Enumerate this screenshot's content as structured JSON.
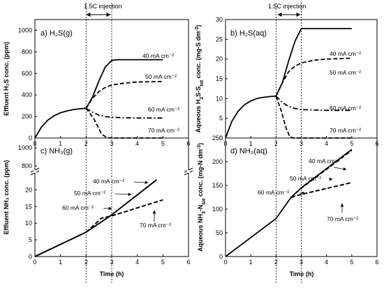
{
  "figure": {
    "injection_label": "1.5C injection",
    "injection_range": [
      2,
      3
    ],
    "xlabel": "Time (h)"
  },
  "chart_data": [
    {
      "id": "a",
      "type": "line",
      "title": "a) H₂S(g)",
      "ylabel": "Effluent H₂S conc. (ppm)",
      "xlim": [
        0,
        6
      ],
      "ylim": [
        0,
        1100
      ],
      "xticks": [
        "0",
        "1",
        "2",
        "3",
        "4",
        "5",
        "6"
      ],
      "yticks": [
        "0",
        "200",
        "400",
        "600",
        "800",
        "1000"
      ],
      "series": [
        {
          "name": "40 mA cm⁻²",
          "style": "solid",
          "points": [
            [
              0,
              0
            ],
            [
              0.25,
              100
            ],
            [
              0.5,
              165
            ],
            [
              0.75,
              207
            ],
            [
              1,
              234
            ],
            [
              1.25,
              252
            ],
            [
              1.5,
              264
            ],
            [
              1.75,
              271
            ],
            [
              2,
              276
            ],
            [
              2.25,
              380
            ],
            [
              2.5,
              530
            ],
            [
              2.75,
              660
            ],
            [
              3,
              720
            ],
            [
              3.25,
              727
            ],
            [
              4,
              727
            ],
            [
              5,
              727
            ]
          ]
        },
        {
          "name": "50 mA cm⁻²",
          "style": "dashed",
          "points": [
            [
              2,
              276
            ],
            [
              2.25,
              370
            ],
            [
              2.5,
              430
            ],
            [
              2.75,
              470
            ],
            [
              3,
              492
            ],
            [
              3.5,
              510
            ],
            [
              4,
              520
            ],
            [
              5,
              525
            ]
          ]
        },
        {
          "name": "60 mA cm⁻²",
          "style": "dashdot",
          "points": [
            [
              2,
              276
            ],
            [
              2.25,
              240
            ],
            [
              2.5,
              212
            ],
            [
              2.75,
              199
            ],
            [
              3,
              192
            ],
            [
              4,
              186
            ],
            [
              5,
              186
            ]
          ]
        },
        {
          "name": "70 mA cm⁻²",
          "style": "dashed",
          "points": [
            [
              2,
              276
            ],
            [
              2.3,
              180
            ],
            [
              2.6,
              40
            ],
            [
              2.8,
              3
            ],
            [
              3,
              0
            ],
            [
              4,
              0
            ],
            [
              5,
              0
            ]
          ]
        }
      ]
    },
    {
      "id": "b",
      "type": "line",
      "title": "b) H₂S(aq)",
      "ylabel": "Aqueous H₂S-S_tot conc. (mg-S dm⁻³)",
      "xlim": [
        0,
        6
      ],
      "ylim": [
        0,
        30
      ],
      "xticks": [
        "0",
        "1",
        "2",
        "3",
        "4",
        "5",
        "6"
      ],
      "yticks": [
        "0",
        "5",
        "10",
        "15",
        "20",
        "25",
        "30"
      ],
      "series": [
        {
          "name": "40 mA cm⁻²",
          "style": "solid",
          "points": [
            [
              0,
              0
            ],
            [
              0.25,
              4.2
            ],
            [
              0.5,
              6.8
            ],
            [
              0.75,
              8.4
            ],
            [
              1,
              9.4
            ],
            [
              1.25,
              10
            ],
            [
              1.5,
              10.3
            ],
            [
              1.75,
              10.5
            ],
            [
              2,
              10.6
            ],
            [
              2.25,
              14
            ],
            [
              2.5,
              19.5
            ],
            [
              2.75,
              24.5
            ],
            [
              3,
              27.7
            ],
            [
              4,
              27.7
            ],
            [
              5,
              27.7
            ]
          ]
        },
        {
          "name": "50 mA cm⁻²",
          "style": "dashed",
          "points": [
            [
              2,
              10.6
            ],
            [
              2.25,
              14
            ],
            [
              2.5,
              16.8
            ],
            [
              2.75,
              18.2
            ],
            [
              3,
              19
            ],
            [
              3.5,
              19.7
            ],
            [
              4,
              20
            ],
            [
              5,
              20.2
            ]
          ]
        },
        {
          "name": "60 mA cm⁻²",
          "style": "dashdot",
          "points": [
            [
              2,
              10.6
            ],
            [
              2.25,
              9
            ],
            [
              2.5,
              8
            ],
            [
              2.75,
              7.5
            ],
            [
              3,
              7.2
            ],
            [
              4,
              7
            ],
            [
              5,
              7
            ]
          ]
        },
        {
          "name": "70 mA cm⁻²",
          "style": "dashed",
          "points": [
            [
              2,
              10.6
            ],
            [
              2.2,
              7
            ],
            [
              2.4,
              2.5
            ],
            [
              2.55,
              0.3
            ],
            [
              2.7,
              0
            ],
            [
              3,
              0
            ],
            [
              4,
              0
            ],
            [
              5,
              0
            ]
          ]
        }
      ]
    },
    {
      "id": "c",
      "type": "line",
      "title": "c) NH₃(g)",
      "ylabel": "Effluent NH₃ conc. (ppm)",
      "xlim": [
        0,
        6
      ],
      "broken_axis": true,
      "ylim_lower": [
        0,
        23
      ],
      "ylim_upper": [
        800,
        1000
      ],
      "xticks": [
        "0",
        "1",
        "2",
        "3",
        "4",
        "5",
        "6"
      ],
      "yticks": [
        "0",
        "5",
        "10",
        "15",
        "20",
        "800",
        "1000"
      ],
      "series": [
        {
          "name": "40 mA cm⁻²",
          "style": "solid",
          "points": [
            [
              0,
              0
            ],
            [
              2,
              7.3
            ],
            [
              3,
              12.5
            ],
            [
              4.75,
              23
            ]
          ]
        },
        {
          "name": "50 mA cm⁻²",
          "style": "solid",
          "points": [
            [
              0,
              0
            ],
            [
              2,
              7.3
            ],
            [
              3,
              12.5
            ],
            [
              4.75,
              23
            ]
          ]
        },
        {
          "name": "60 mA cm⁻²",
          "style": "dashed",
          "points": [
            [
              2,
              7.3
            ],
            [
              2.6,
              11.5
            ],
            [
              3,
              12.2
            ],
            [
              5,
              17
            ]
          ]
        },
        {
          "name": "70 mA cm⁻²",
          "style": "dashed",
          "points": [
            [
              2,
              7.3
            ],
            [
              2.6,
              11.5
            ],
            [
              3,
              12.2
            ],
            [
              5,
              17
            ]
          ]
        }
      ],
      "labels": [
        "40 mA cm⁻²",
        "50 mA cm⁻²",
        "60 mA cm⁻²",
        "70 mA cm⁻²"
      ]
    },
    {
      "id": "d",
      "type": "line",
      "title": "d) NH₃(aq)",
      "ylabel": "Aqueous NH₃-N_tot conc. (mg-N dm⁻³)",
      "xlim": [
        0,
        6
      ],
      "ylim": [
        0,
        250
      ],
      "xticks": [
        "0",
        "1",
        "2",
        "3",
        "4",
        "5",
        "6"
      ],
      "yticks": [
        "0",
        "50",
        "100",
        "150",
        "200",
        "250"
      ],
      "series": [
        {
          "name": "40 mA cm⁻²",
          "style": "solid",
          "points": [
            [
              0,
              0
            ],
            [
              2,
              80
            ],
            [
              2.6,
              125
            ],
            [
              3,
              145
            ],
            [
              5,
              226
            ]
          ]
        },
        {
          "name": "50 mA cm⁻²",
          "style": "dashed",
          "points": [
            [
              2.6,
              125
            ],
            [
              3,
              144
            ],
            [
              5,
              224
            ]
          ]
        },
        {
          "name": "60 mA cm⁻²",
          "style": "dashed",
          "points": [
            [
              2.6,
              125
            ],
            [
              3,
              131
            ],
            [
              5,
              156
            ]
          ]
        },
        {
          "name": "70 mA cm⁻²",
          "style": "dashed",
          "points": [
            [
              2.6,
              125
            ],
            [
              3,
              131
            ],
            [
              5,
              156
            ]
          ]
        }
      ],
      "labels": [
        "40 mA cm⁻²",
        "50 mA cm⁻²",
        "60 mA cm⁻²",
        "70 mA cm⁻²"
      ]
    }
  ]
}
